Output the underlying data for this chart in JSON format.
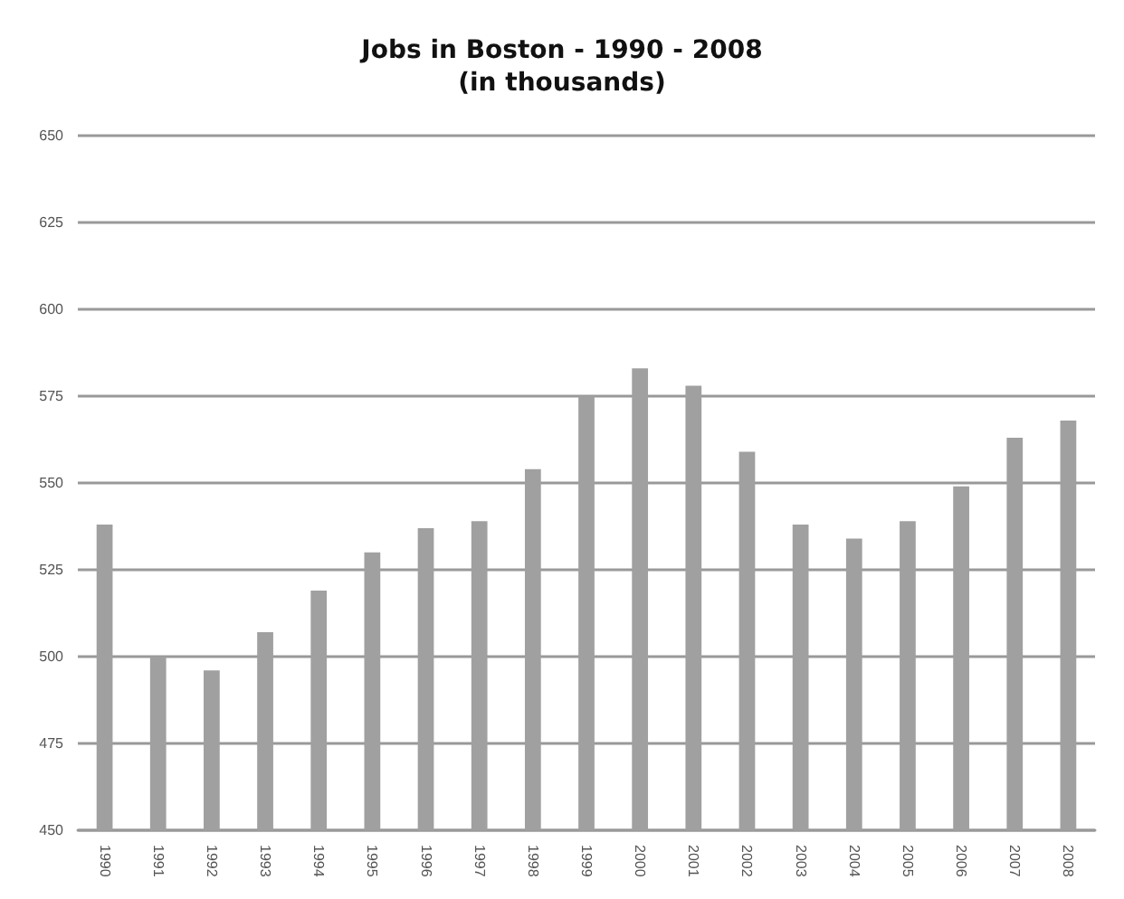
{
  "chart_data": {
    "type": "bar",
    "title": "Jobs in Boston - 1990 - 2008",
    "subtitle": "(in thousands)",
    "categories": [
      "1990",
      "1991",
      "1992",
      "1993",
      "1994",
      "1995",
      "1996",
      "1997",
      "1998",
      "1999",
      "2000",
      "2001",
      "2002",
      "2003",
      "2004",
      "2005",
      "2006",
      "2007",
      "2008"
    ],
    "values": [
      538,
      500,
      496,
      507,
      519,
      530,
      537,
      539,
      554,
      575,
      583,
      578,
      559,
      538,
      534,
      539,
      549,
      563,
      568
    ],
    "color": "#a0a0a0",
    "ylim": [
      450,
      650
    ],
    "yticks": [
      450,
      475,
      500,
      525,
      550,
      575,
      600,
      625,
      650
    ],
    "grid": "y"
  }
}
